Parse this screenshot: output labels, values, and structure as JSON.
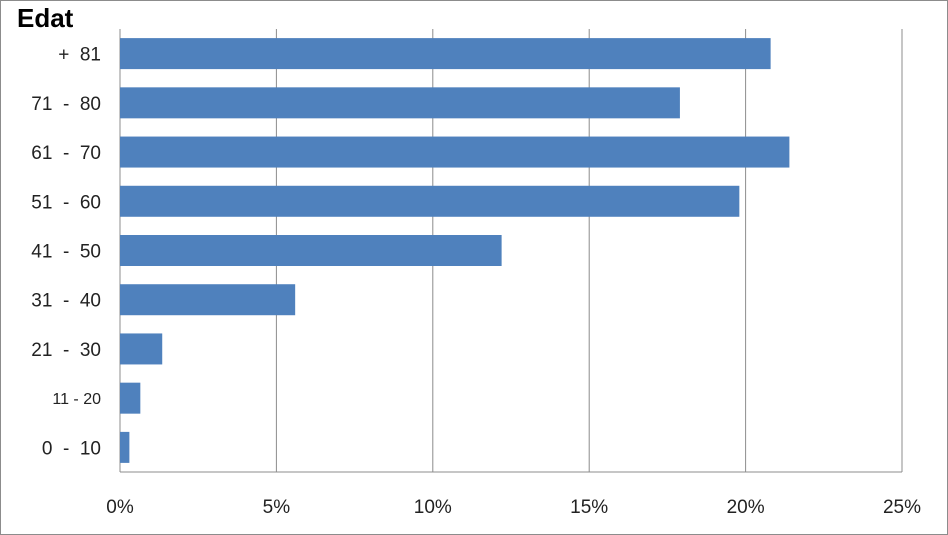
{
  "chart_data": {
    "type": "bar",
    "orientation": "horizontal",
    "title": "Edat",
    "categories": [
      "+  81",
      "71  -  80",
      "61  -  70",
      "51  -  60",
      "41  -  50",
      "31  -  40",
      "21  -  30",
      "11 - 20",
      "0  -  10"
    ],
    "values": [
      20.8,
      17.9,
      21.4,
      19.8,
      12.2,
      5.6,
      1.35,
      0.65,
      0.3
    ],
    "xlim": [
      0,
      25
    ],
    "x_ticks": [
      "0%",
      "5%",
      "10%",
      "15%",
      "20%",
      "25%"
    ],
    "x_tick_values": [
      0,
      5,
      10,
      15,
      20,
      25
    ],
    "grid": "vertical",
    "legend": "none",
    "colors": {
      "bar": "#4f81bd",
      "grid": "#8c8c8c",
      "text": "#222222"
    }
  }
}
